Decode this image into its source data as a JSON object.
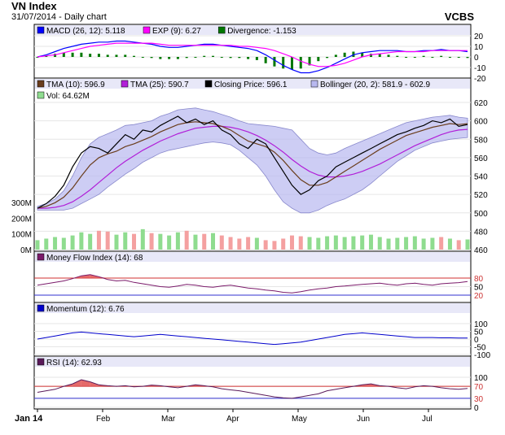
{
  "header": {
    "title": "VN Index",
    "subtitle": "31/07/2014 - Daily chart",
    "brand": "VCBS"
  },
  "months": [
    "Jan 14",
    "Feb",
    "Mar",
    "Apr",
    "May",
    "Jun",
    "Jul"
  ],
  "colors": {
    "close": "#000000",
    "tma10": "#6a3d1c",
    "tma25": "#b11fd8",
    "bollinger_fill": "#b8b8f0",
    "vol_up": "#8fdc8f",
    "vol_down": "#f4a0a0",
    "mfi": "#7a1a6a",
    "momentum": "#0000cc",
    "rsi": "#5a1a5a",
    "overbought_fill": "#e05050",
    "macd": "#0000ff",
    "exp": "#ff00ff",
    "divergence": "#007700"
  },
  "chart_data": [
    {
      "type": "line",
      "name": "MACD panel",
      "legend": [
        "MACD (26, 12): 5.118",
        "EXP (9): 6.27",
        "Divergence: -1.153"
      ],
      "ylim": [
        -20,
        20
      ],
      "y_ticks": [
        "20",
        "10",
        "0",
        "-10",
        "-20"
      ],
      "series": [
        {
          "name": "MACD (26, 12)",
          "last": 5.118,
          "values": [
            0,
            2,
            5,
            8,
            10,
            12,
            13,
            14,
            14,
            15,
            15,
            14,
            13,
            12,
            10,
            9,
            9,
            10,
            11,
            12,
            12,
            11,
            10,
            9,
            8,
            6,
            2,
            -3,
            -8,
            -12,
            -15,
            -15,
            -13,
            -10,
            -6,
            -2,
            2,
            4,
            5,
            6,
            6,
            6,
            5,
            5,
            6,
            6,
            7,
            6,
            6,
            5
          ]
        },
        {
          "name": "EXP (9)",
          "last": 6.27,
          "values": [
            0,
            1,
            2,
            4,
            6,
            8,
            10,
            11,
            12,
            13,
            13,
            13,
            13,
            13,
            12,
            11,
            11,
            11,
            11,
            11,
            11,
            11,
            11,
            10,
            10,
            9,
            8,
            6,
            3,
            0,
            -4,
            -7,
            -9,
            -9,
            -8,
            -6,
            -3,
            0,
            2,
            3,
            4,
            5,
            5,
            5,
            5,
            6,
            6,
            6,
            6,
            6
          ]
        }
      ]
    },
    {
      "type": "line",
      "name": "Price panel",
      "legend": [
        "TMA (10): 596.9",
        "TMA (25): 590.7",
        "Closing Price: 596.1",
        "Bollinger (20, 2): 581.9 - 602.9",
        "Vol: 64.62M"
      ],
      "ylim": [
        460,
        620
      ],
      "y_ticks": [
        "620",
        "600",
        "580",
        "560",
        "540",
        "520",
        "500",
        "480",
        "460"
      ],
      "volume_ticks": [
        "300M",
        "200M",
        "100M",
        "0M"
      ],
      "volume_max": 300,
      "series": [
        {
          "name": "Closing Price",
          "last": 596.1,
          "values": [
            505,
            510,
            518,
            530,
            550,
            565,
            572,
            570,
            565,
            575,
            585,
            580,
            590,
            588,
            595,
            600,
            605,
            598,
            602,
            596,
            600,
            590,
            585,
            575,
            570,
            580,
            575,
            560,
            545,
            530,
            520,
            525,
            535,
            540,
            550,
            555,
            560,
            565,
            570,
            575,
            580,
            585,
            588,
            592,
            595,
            600,
            598,
            602,
            594,
            596
          ]
        },
        {
          "name": "TMA (10)",
          "last": 596.9,
          "values": [
            505,
            507,
            511,
            517,
            527,
            540,
            552,
            560,
            564,
            567,
            572,
            575,
            579,
            583,
            588,
            592,
            596,
            598,
            599,
            598,
            597,
            594,
            590,
            584,
            578,
            575,
            572,
            566,
            557,
            546,
            536,
            530,
            530,
            533,
            539,
            545,
            551,
            557,
            563,
            569,
            574,
            579,
            584,
            587,
            590,
            593,
            595,
            597,
            596,
            596.9
          ]
        },
        {
          "name": "TMA (25)",
          "last": 590.7,
          "values": [
            505,
            505,
            506,
            508,
            512,
            518,
            525,
            533,
            541,
            549,
            556,
            562,
            568,
            573,
            578,
            582,
            586,
            589,
            592,
            593,
            594,
            594,
            593,
            591,
            588,
            584,
            579,
            573,
            566,
            558,
            551,
            545,
            541,
            539,
            539,
            540,
            542,
            545,
            549,
            553,
            558,
            563,
            568,
            573,
            577,
            581,
            585,
            588,
            590,
            590.7
          ]
        },
        {
          "name": "Bollinger upper",
          "last": 602.9,
          "values": [
            507,
            510,
            515,
            524,
            540,
            560,
            575,
            582,
            586,
            590,
            595,
            596,
            598,
            600,
            605,
            608,
            612,
            613,
            614,
            612,
            610,
            607,
            604,
            600,
            597,
            596,
            595,
            594,
            592,
            590,
            580,
            570,
            565,
            563,
            565,
            570,
            574,
            578,
            582,
            586,
            590,
            594,
            598,
            600,
            602,
            604,
            605,
            606,
            604,
            602.9
          ]
        },
        {
          "name": "Bollinger lower",
          "last": 581.9,
          "values": [
            503,
            503,
            503,
            503,
            505,
            510,
            515,
            520,
            528,
            535,
            542,
            548,
            555,
            560,
            565,
            568,
            570,
            572,
            574,
            576,
            577,
            576,
            574,
            568,
            560,
            552,
            540,
            525,
            512,
            505,
            500,
            500,
            503,
            508,
            512,
            515,
            520,
            525,
            532,
            540,
            548,
            556,
            562,
            568,
            572,
            576,
            578,
            580,
            581,
            581.9
          ]
        },
        {
          "name": "Vol (M)",
          "last": 64.62,
          "values": [
            60,
            70,
            80,
            75,
            90,
            110,
            100,
            120,
            115,
            95,
            110,
            100,
            130,
            105,
            100,
            90,
            110,
            120,
            95,
            100,
            105,
            90,
            80,
            70,
            80,
            75,
            60,
            55,
            70,
            90,
            85,
            80,
            75,
            85,
            90,
            80,
            85,
            90,
            95,
            80,
            70,
            75,
            80,
            85,
            70,
            75,
            80,
            70,
            60,
            64.62
          ]
        }
      ]
    },
    {
      "type": "line",
      "name": "Money Flow Index panel",
      "legend": [
        "Money Flow Index (14): 68"
      ],
      "ylim": [
        0,
        100
      ],
      "y_ticks": [
        "80",
        "50",
        "20"
      ],
      "reference_lines": [
        80,
        20
      ],
      "series": [
        {
          "name": "Money Flow Index (14)",
          "last": 68,
          "values": [
            55,
            60,
            65,
            70,
            78,
            88,
            92,
            85,
            75,
            70,
            72,
            65,
            60,
            55,
            50,
            48,
            52,
            58,
            55,
            50,
            48,
            52,
            55,
            50,
            45,
            42,
            38,
            35,
            30,
            28,
            32,
            38,
            42,
            45,
            50,
            52,
            55,
            58,
            60,
            62,
            58,
            55,
            60,
            62,
            58,
            55,
            60,
            62,
            64,
            68
          ]
        }
      ]
    },
    {
      "type": "line",
      "name": "Momentum panel",
      "legend": [
        "Momentum (12): 6.76"
      ],
      "ylim": [
        -100,
        100
      ],
      "y_ticks": [
        "100",
        "50",
        "0",
        "-50",
        "-100"
      ],
      "series": [
        {
          "name": "Momentum (12)",
          "last": 6.76,
          "values": [
            0,
            10,
            20,
            30,
            40,
            45,
            40,
            35,
            30,
            25,
            20,
            15,
            20,
            25,
            30,
            25,
            20,
            15,
            10,
            5,
            0,
            -5,
            -10,
            -15,
            -20,
            -25,
            -30,
            -35,
            -30,
            -25,
            -20,
            -10,
            0,
            10,
            20,
            30,
            35,
            40,
            35,
            30,
            25,
            20,
            15,
            10,
            10,
            10,
            8,
            8,
            7,
            6.76
          ]
        }
      ]
    },
    {
      "type": "line",
      "name": "RSI panel",
      "legend": [
        "RSI (14): 62.93"
      ],
      "ylim": [
        0,
        100
      ],
      "y_ticks": [
        "100",
        "70",
        "30",
        "0"
      ],
      "reference_lines": [
        70,
        30
      ],
      "series": [
        {
          "name": "RSI (14)",
          "last": 62.93,
          "values": [
            50,
            55,
            60,
            70,
            78,
            92,
            85,
            75,
            72,
            70,
            72,
            68,
            70,
            74,
            72,
            68,
            65,
            70,
            75,
            72,
            68,
            62,
            58,
            55,
            50,
            45,
            40,
            35,
            32,
            30,
            35,
            40,
            45,
            55,
            60,
            65,
            70,
            75,
            78,
            72,
            70,
            65,
            62,
            68,
            72,
            70,
            65,
            62,
            60,
            62.93
          ]
        }
      ]
    }
  ]
}
